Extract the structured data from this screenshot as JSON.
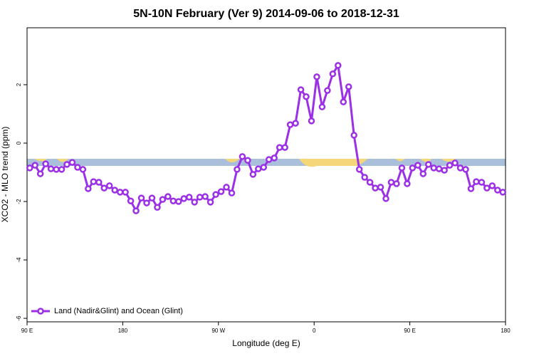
{
  "chart_data": {
    "type": "line",
    "title": "5N-10N February (Ver 9)   2014-09-06 to 2018-12-31",
    "x_label": "Longitude (deg E)",
    "y_label": "XCO2 - MLO trend (ppm)",
    "x": [
      92.5,
      97.5,
      102.5,
      107.5,
      112.5,
      117.5,
      122.5,
      127.5,
      132.5,
      137.5,
      142.5,
      147.5,
      152.5,
      157.5,
      162.5,
      167.5,
      172.5,
      177.5,
      182.5,
      187.5,
      192.5,
      197.5,
      202.5,
      207.5,
      212.5,
      217.5,
      222.5,
      227.5,
      232.5,
      237.5,
      242.5,
      247.5,
      252.5,
      257.5,
      262.5,
      267.5,
      272.5,
      277.5,
      282.5,
      287.5,
      292.5,
      297.5,
      302.5,
      307.5,
      312.5,
      317.5,
      322.5,
      327.5,
      332.5,
      337.5,
      342.5,
      347.5,
      352.5,
      357.5,
      362.5,
      367.5,
      372.5,
      377.5,
      382.5,
      387.5,
      392.5,
      397.5,
      402.5,
      407.5,
      412.5,
      417.5,
      422.5,
      427.5,
      432.5,
      437.5,
      442.5,
      447.5,
      452.5,
      457.5,
      462.5,
      467.5,
      472.5,
      477.5,
      482.5,
      487.5,
      492.5,
      497.5,
      502.5,
      507.5,
      512.5,
      517.5,
      522.5,
      527.5,
      532.5,
      537.5
    ],
    "series": [
      {
        "name": "Land (Nadir&Glint) and Ocean (Glint)",
        "color": "#9b30e6",
        "values": [
          -0.85,
          -0.76,
          -1.05,
          -0.71,
          -0.88,
          -0.9,
          -0.9,
          -0.73,
          -0.66,
          -0.83,
          -0.9,
          -1.56,
          -1.32,
          -1.34,
          -1.54,
          -1.46,
          -1.61,
          -1.68,
          -1.68,
          -1.98,
          -2.32,
          -1.88,
          -2.05,
          -1.88,
          -2.2,
          -1.93,
          -1.83,
          -1.98,
          -2.0,
          -1.9,
          -1.85,
          -2.02,
          -1.85,
          -1.83,
          -2.02,
          -1.76,
          -1.66,
          -1.51,
          -1.71,
          -0.9,
          -0.46,
          -0.59,
          -1.07,
          -0.88,
          -0.83,
          -0.56,
          -0.51,
          -0.15,
          -0.15,
          0.63,
          0.68,
          1.83,
          1.59,
          0.76,
          2.27,
          1.24,
          1.8,
          2.37,
          2.66,
          1.41,
          1.93,
          0.27,
          -0.9,
          -1.17,
          -1.34,
          -1.54,
          -1.51,
          -1.9,
          -1.34,
          -1.39,
          -0.85,
          -1.39,
          -0.85,
          -0.76,
          -1.05,
          -0.73,
          -0.85,
          -0.88,
          -0.93,
          -0.76,
          -0.68,
          -0.85,
          -0.9,
          -1.56,
          -1.32,
          -1.34,
          -1.54,
          -1.46,
          -1.61,
          -1.68
        ]
      }
    ],
    "xlim": [
      90,
      540
    ],
    "xticks": [
      {
        "value": 90,
        "label": "90 E"
      },
      {
        "value": 180,
        "label": "180"
      },
      {
        "value": 270,
        "label": "90 W"
      },
      {
        "value": 360,
        "label": "0"
      },
      {
        "value": 450,
        "label": "90 E"
      },
      {
        "value": 540,
        "label": "180"
      }
    ],
    "ylim": [
      -6.12,
      3.95
    ],
    "yticks": [
      2,
      0,
      -2,
      -4,
      -6
    ],
    "legend": "bottom-left"
  }
}
